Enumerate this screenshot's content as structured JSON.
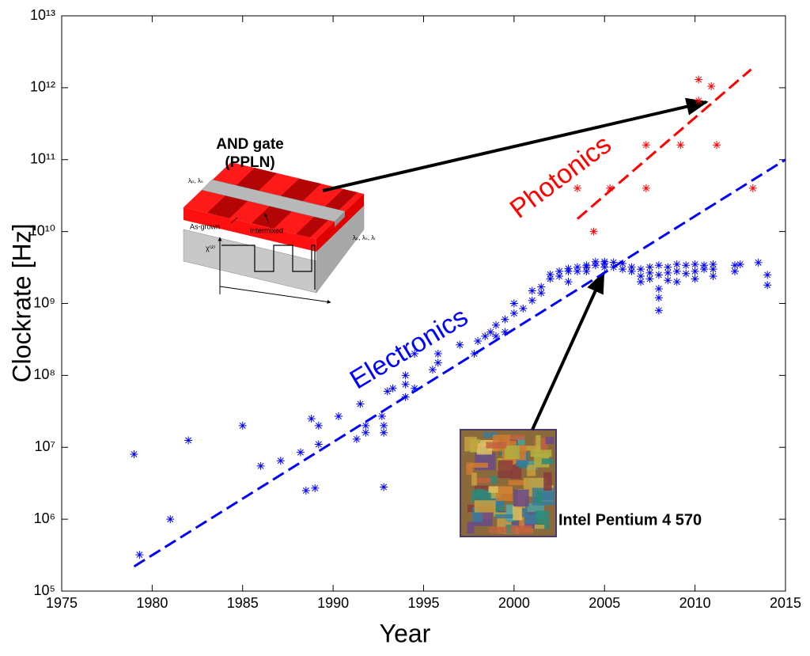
{
  "chart_data": {
    "type": "scatter",
    "x_label": "Year",
    "y_label": "Clockrate [Hz]",
    "xlim": [
      1975,
      2015
    ],
    "xticks": [
      1975,
      1980,
      1985,
      1990,
      1995,
      2000,
      2005,
      2010,
      2015
    ],
    "ylim": [
      100000,
      10000000000000
    ],
    "y_log": true,
    "yticks": [
      {
        "value": 100000,
        "label": "10⁵"
      },
      {
        "value": 1000000,
        "label": "10⁶"
      },
      {
        "value": 10000000,
        "label": "10⁷"
      },
      {
        "value": 100000000,
        "label": "10⁸"
      },
      {
        "value": 1000000000,
        "label": "10⁹"
      },
      {
        "value": 10000000000,
        "label": "10¹⁰"
      },
      {
        "value": 100000000000,
        "label": "10¹¹"
      },
      {
        "value": 1000000000000,
        "label": "10¹²"
      },
      {
        "value": 10000000000000,
        "label": "10¹³"
      }
    ],
    "series": [
      {
        "name": "Electronics",
        "color": "#0000ff",
        "x": [
          1979.0,
          1979.3,
          1981.0,
          1982.0,
          1985.0,
          1986.0,
          1987.1,
          1988.2,
          1988.5,
          1988.8,
          1989.0,
          1989.2,
          1989.2,
          1990.3,
          1991.3,
          1991.5,
          1991.8,
          1991.8,
          1992.7,
          1992.8,
          1992.8,
          1992.8,
          1993.0,
          1993.3,
          1994.0,
          1994.0,
          1994.0,
          1994.5,
          1994.5,
          1995.5,
          1995.8,
          1995.8,
          1997.0,
          1997.8,
          1998.0,
          1998.4,
          1998.7,
          1999.0,
          1999.0,
          1999.5,
          1999.5,
          2000.0,
          2000.0,
          2000.5,
          2001.0,
          2001.0,
          2001.5,
          2001.5,
          2002.0,
          2002.0,
          2002.5,
          2002.5,
          2003.0,
          2003.0,
          2003.0,
          2003.5,
          2003.5,
          2004.0,
          2004.0,
          2004.0,
          2004.5,
          2004.5,
          2005.0,
          2005.0,
          2005.0,
          2005.5,
          2005.5,
          2006.0,
          2006.0,
          2006.5,
          2006.5,
          2007.0,
          2007.0,
          2007.0,
          2007.5,
          2007.5,
          2007.5,
          2008.0,
          2008.0,
          2008.0,
          2008.0,
          2008.0,
          2008.5,
          2008.5,
          2008.5,
          2009.0,
          2009.0,
          2009.0,
          2009.5,
          2009.5,
          2010.0,
          2010.0,
          2010.0,
          2010.5,
          2010.5,
          2011.0,
          2011.0,
          2011.0,
          2012.2,
          2012.2,
          2012.5,
          2013.5,
          2014.0,
          2014.0
        ],
        "values": [
          8000000.0,
          320000.0,
          1000000.0,
          12500000.0,
          20000000.0,
          5500000.0,
          6500000.0,
          8500000.0,
          2500000.0,
          25000000.0,
          2700000.0,
          20000000.0,
          11000000.0,
          27000000.0,
          13000000.0,
          40000000.0,
          20000000.0,
          16000000.0,
          27000000.0,
          20000000.0,
          16000000.0,
          2800000.0,
          60000000.0,
          66000000.0,
          100000000.0,
          75000000.0,
          50000000.0,
          200000000.0,
          66000000.0,
          120000000.0,
          200000000.0,
          150000000.0,
          266000000.0,
          200000000.0,
          300000000.0,
          350000000.0,
          400000000.0,
          500000000.0,
          350000000.0,
          600000000.0,
          400000000.0,
          730000000.0,
          1000000000.0,
          850000000.0,
          1100000000.0,
          1500000000.0,
          1700000000.0,
          1400000000.0,
          2200000000.0,
          2530000000.0,
          2800000000.0,
          2400000000.0,
          3060000000.0,
          2800000000.0,
          2000000000.0,
          3200000000.0,
          2800000000.0,
          3400000000.0,
          3200000000.0,
          2800000000.0,
          3800000000.0,
          3400000000.0,
          3800000000.0,
          3600000000.0,
          3200000000.0,
          3730000000.0,
          3200000000.0,
          3600000000.0,
          3000000000.0,
          3200000000.0,
          2800000000.0,
          3000000000.0,
          2400000000.0,
          2000000000.0,
          3200000000.0,
          2660000000.0,
          2200000000.0,
          3400000000.0,
          2500000000.0,
          1600000000.0,
          1200000000.0,
          800000000.0,
          3200000000.0,
          2660000000.0,
          2100000000.0,
          3500000000.0,
          2800000000.0,
          2000000000.0,
          3400000000.0,
          2600000000.0,
          3500000000.0,
          2800000000.0,
          2200000000.0,
          3400000000.0,
          3000000000.0,
          3500000000.0,
          3000000000.0,
          2400000000.0,
          3400000000.0,
          2800000000.0,
          3500000000.0,
          3700000000.0,
          2500000000.0,
          1800000000.0
        ],
        "fit": {
          "x": [
            1979,
            2015
          ],
          "values": [
            220000.0,
            100000000000.0
          ]
        }
      },
      {
        "name": "Photonics",
        "color": "#ff0000",
        "x": [
          2003.5,
          2004.4,
          2005.3,
          2007.3,
          2007.3,
          2009.2,
          2010.2,
          2010.2,
          2010.9,
          2011.2,
          2013.2
        ],
        "values": [
          40000000000.0,
          10000000000.0,
          40000000000.0,
          160000000000.0,
          40000000000.0,
          160000000000.0,
          1300000000000.0,
          660000000000.0,
          1050000000000.0,
          160000000000.0,
          40000000000.0
        ],
        "fit": {
          "x": [
            2003.5,
            2013.1
          ],
          "values": [
            15000000000.0,
            1800000000000.0
          ]
        }
      }
    ],
    "annotations": {
      "and_gate": [
        "AND gate",
        "(PPLN)"
      ],
      "pentium": "Intel Pentium 4 570",
      "inset_labels": {
        "input": "λₚ, λₛ",
        "output": "λₚ, λₛ, λᵢ",
        "as_grown": "As-grown",
        "intermixed": "Intermixed",
        "chi": "χ⁽²⁾"
      }
    }
  }
}
